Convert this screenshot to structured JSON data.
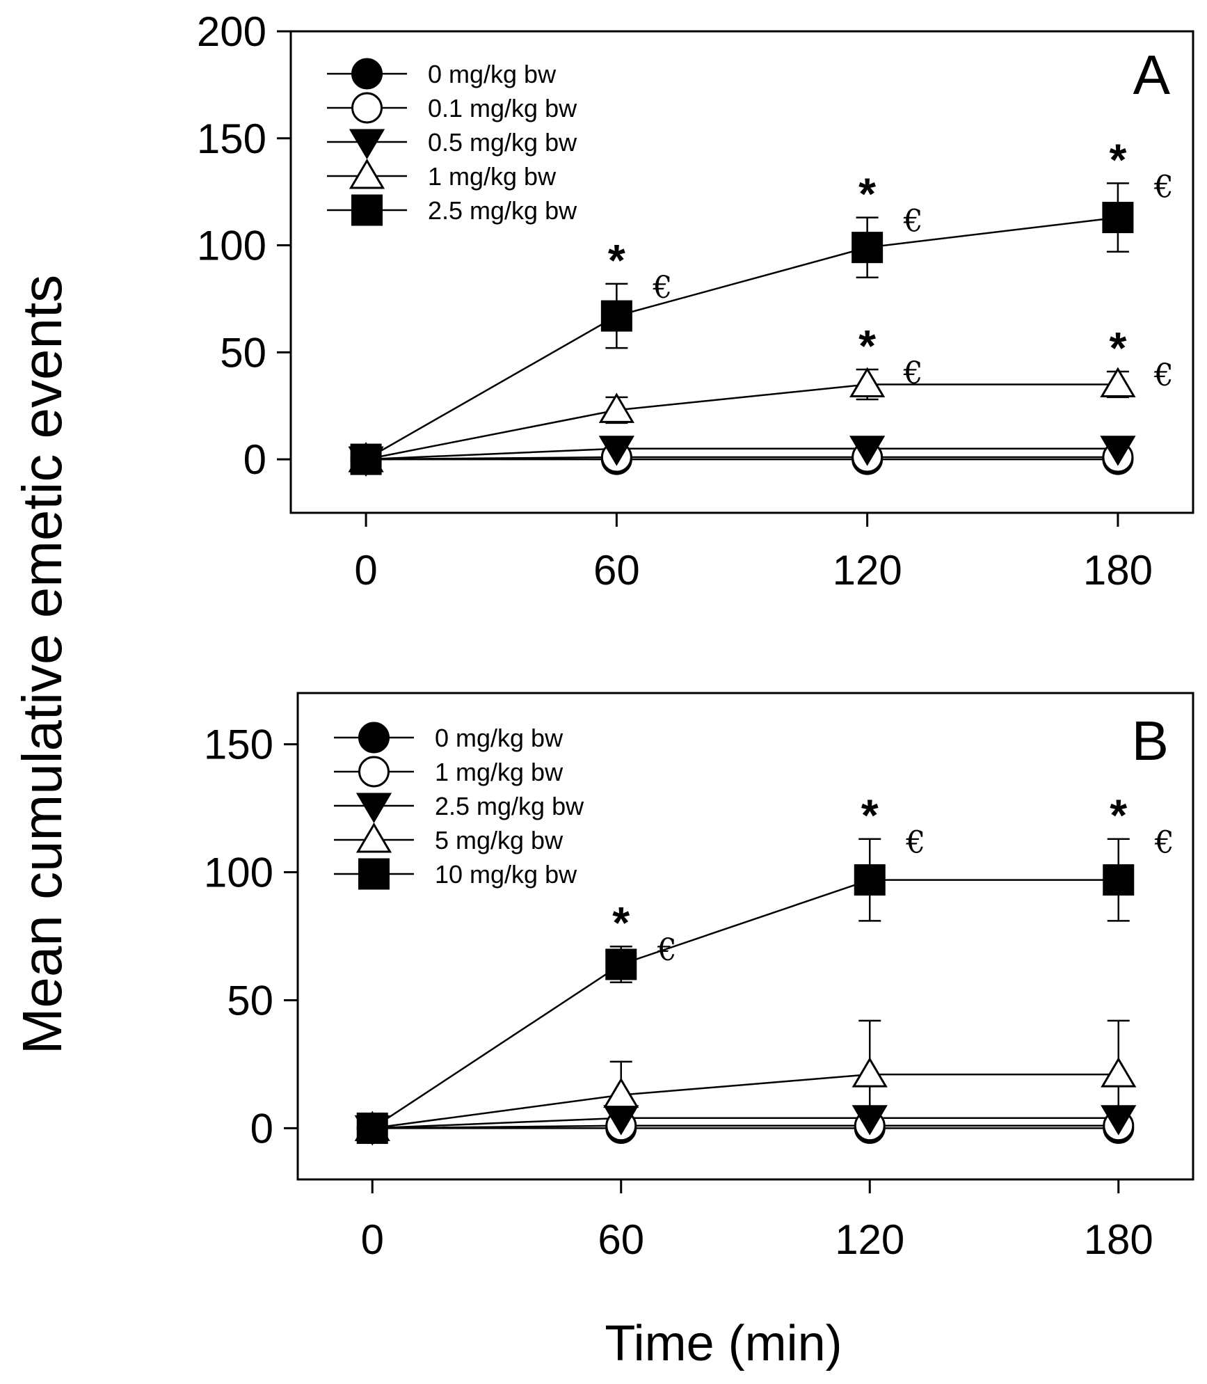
{
  "chart_data": [
    {
      "type": "line",
      "panel": "A",
      "xlabel": "Time (min)",
      "ylabel": "Mean cumulative emetic events",
      "x": [
        0,
        60,
        120,
        180
      ],
      "x_ticks": [
        "0",
        "60",
        "120",
        "180"
      ],
      "xlim": [
        -18,
        198
      ],
      "ylim": [
        -25,
        200
      ],
      "y_ticks": [
        "0",
        "50",
        "100",
        "150",
        "200"
      ],
      "y_tick_values": [
        0,
        50,
        100,
        150,
        200
      ],
      "series": [
        {
          "name": "0 mg/kg bw",
          "marker": "circle-filled",
          "values": [
            0,
            0,
            0,
            0
          ],
          "errors": [
            0,
            0,
            0,
            0
          ]
        },
        {
          "name": "0.1 mg/kg bw",
          "marker": "circle-open",
          "values": [
            0,
            1,
            1,
            1
          ],
          "errors": [
            0,
            0,
            0,
            0
          ]
        },
        {
          "name": "0.5 mg/kg bw",
          "marker": "triangle-down-filled",
          "values": [
            0,
            5,
            5,
            5
          ],
          "errors": [
            0,
            0,
            0,
            0
          ]
        },
        {
          "name": "1 mg/kg bw",
          "marker": "triangle-up-open",
          "values": [
            0,
            23,
            35,
            35
          ],
          "errors": [
            0,
            6,
            7,
            6
          ]
        },
        {
          "name": "2.5 mg/kg bw",
          "marker": "square-filled",
          "values": [
            0,
            67,
            99,
            113
          ],
          "errors": [
            0,
            15,
            14,
            16
          ]
        }
      ],
      "annotations": [
        {
          "series": 4,
          "x": 60,
          "y_top": 82,
          "star": "*",
          "euro": "€"
        },
        {
          "series": 4,
          "x": 120,
          "y_top": 113,
          "star": "*",
          "euro": "€"
        },
        {
          "series": 4,
          "x": 180,
          "y_top": 129,
          "star": "*",
          "euro": "€"
        },
        {
          "series": 3,
          "x": 120,
          "y_top": 42,
          "star": "*",
          "euro": "€"
        },
        {
          "series": 3,
          "x": 180,
          "y_top": 41,
          "star": "*",
          "euro": "€"
        }
      ]
    },
    {
      "type": "line",
      "panel": "B",
      "xlabel": "Time (min)",
      "ylabel": "Mean cumulative emetic events",
      "x": [
        0,
        60,
        120,
        180
      ],
      "x_ticks": [
        "0",
        "60",
        "120",
        "180"
      ],
      "xlim": [
        -18,
        198
      ],
      "ylim": [
        -20,
        170
      ],
      "y_ticks": [
        "0",
        "50",
        "100",
        "150"
      ],
      "y_tick_values": [
        0,
        50,
        100,
        150
      ],
      "series": [
        {
          "name": "0 mg/kg bw",
          "marker": "circle-filled",
          "values": [
            0,
            0,
            0,
            0
          ],
          "errors": [
            0,
            0,
            0,
            0
          ]
        },
        {
          "name": "1 mg/kg bw",
          "marker": "circle-open",
          "values": [
            0,
            1,
            1,
            1
          ],
          "errors": [
            0,
            0,
            0,
            0
          ]
        },
        {
          "name": "2.5 mg/kg bw",
          "marker": "triangle-down-filled",
          "values": [
            0,
            4,
            4,
            4
          ],
          "errors": [
            0,
            0,
            0,
            0
          ]
        },
        {
          "name": "5 mg/kg bw",
          "marker": "triangle-up-open",
          "values": [
            0,
            13,
            21,
            21
          ],
          "errors": [
            0,
            13,
            21,
            21
          ]
        },
        {
          "name": "10 mg/kg bw",
          "marker": "square-filled",
          "values": [
            0,
            64,
            97,
            97
          ],
          "errors": [
            0,
            7,
            16,
            16
          ]
        }
      ],
      "annotations": [
        {
          "series": 4,
          "x": 60,
          "y_top": 71,
          "star": "*",
          "euro": "€"
        },
        {
          "series": 4,
          "x": 120,
          "y_top": 113,
          "star": "*",
          "euro": "€"
        },
        {
          "series": 4,
          "x": 180,
          "y_top": 113,
          "star": "*",
          "euro": "€"
        }
      ]
    }
  ]
}
